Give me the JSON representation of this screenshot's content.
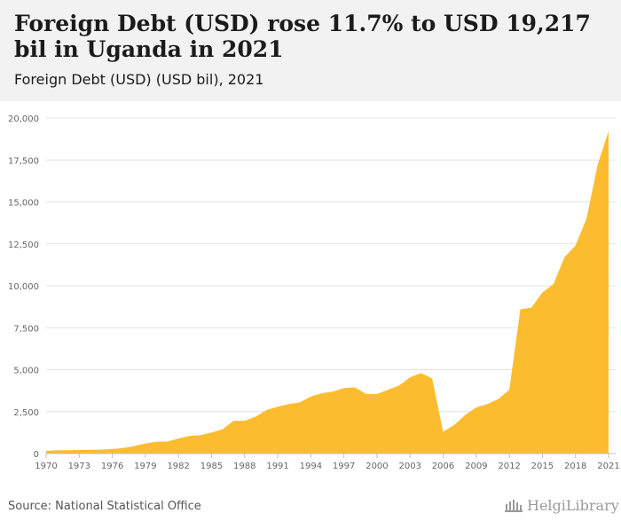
{
  "header": {
    "title": "Foreign Debt (USD) rose 11.7% to USD 19,217 bil in Uganda in 2021",
    "subtitle": "Foreign Debt (USD) (USD bil), 2021"
  },
  "footer": {
    "source": "Source: National Statistical Office",
    "logo_text": "HelgiLibrary"
  },
  "colors": {
    "area_fill": "#fbbd2f",
    "grid": "#e3e3e3",
    "axis_text": "#666666",
    "header_bg": "#f2f2f2"
  },
  "chart_data": {
    "type": "area",
    "title": "Foreign Debt (USD) rose 11.7% to USD 19,217 bil in Uganda in 2021",
    "subtitle": "Foreign Debt (USD) (USD bil), 2021",
    "xlabel": "",
    "ylabel": "",
    "ylim": [
      0,
      20000
    ],
    "xlim": [
      1970,
      2021
    ],
    "grid": true,
    "legend": "none",
    "y_ticks": [
      0,
      2500,
      5000,
      7500,
      10000,
      12500,
      15000,
      17500,
      20000
    ],
    "y_tick_labels": [
      "0",
      "2,500",
      "5,000",
      "7,500",
      "10,000",
      "12,500",
      "15,000",
      "17,500",
      "20,000"
    ],
    "x_tick_labels": [
      "1970",
      "1973",
      "1976",
      "1979",
      "1982",
      "1985",
      "1988",
      "1991",
      "1994",
      "1997",
      "2000",
      "2003",
      "2006",
      "2009",
      "2012",
      "2015",
      "2018",
      "2021"
    ],
    "x": [
      1970,
      1971,
      1972,
      1973,
      1974,
      1975,
      1976,
      1977,
      1978,
      1979,
      1980,
      1981,
      1982,
      1983,
      1984,
      1985,
      1986,
      1987,
      1988,
      1989,
      1990,
      1991,
      1992,
      1993,
      1994,
      1995,
      1996,
      1997,
      1998,
      1999,
      2000,
      2001,
      2002,
      2003,
      2004,
      2005,
      2006,
      2007,
      2008,
      2009,
      2010,
      2011,
      2012,
      2013,
      2014,
      2015,
      2016,
      2017,
      2018,
      2019,
      2020,
      2021
    ],
    "series": [
      {
        "values": [
          160,
          200,
          200,
          210,
          220,
          240,
          270,
          330,
          450,
          600,
          700,
          720,
          900,
          1050,
          1100,
          1250,
          1450,
          1950,
          1950,
          2200,
          2600,
          2800,
          2950,
          3050,
          3400,
          3600,
          3700,
          3900,
          3950,
          3550,
          3550,
          3800,
          4050,
          4550,
          4800,
          4480,
          1300,
          1700,
          2300,
          2750,
          2950,
          3250,
          3800,
          8600,
          8700,
          9600,
          10100,
          11700,
          12400,
          14000,
          17200,
          19217
        ]
      }
    ]
  }
}
